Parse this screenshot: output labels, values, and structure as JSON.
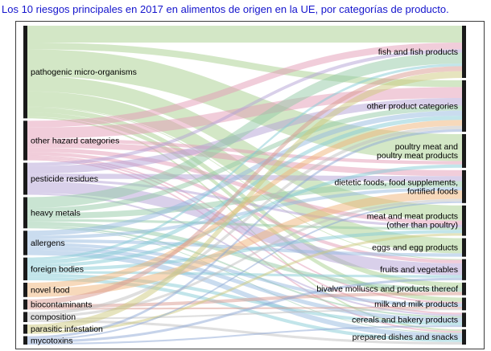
{
  "chart_data": {
    "type": "sankey",
    "title": "Los 10 riesgos principales en 2017 en alimentos de origen en la UE, por categorías de producto.",
    "orientation": "left-to-right",
    "node_color": "#1a1a1a",
    "link_opacity": 0.5,
    "note": "flow values are relative magnitudes estimated from band thickness; the figure shows no numeric labels",
    "sources": [
      {
        "label": "pathogenic micro-organisms",
        "color": "#a8d08d"
      },
      {
        "label": "other hazard categories",
        "color": "#e39bb5"
      },
      {
        "label": "pesticide residues",
        "color": "#b3a2d6"
      },
      {
        "label": "heavy metals",
        "color": "#93c9a5"
      },
      {
        "label": "allergens",
        "color": "#96b9e0"
      },
      {
        "label": "foreign bodies",
        "color": "#85ccd6"
      },
      {
        "label": "novel food",
        "color": "#f0b377"
      },
      {
        "label": "biocontaminants",
        "color": "#d99a8f"
      },
      {
        "label": "composition",
        "color": "#bfbfbf"
      },
      {
        "label": "parasitic infestation",
        "color": "#cdc97e"
      },
      {
        "label": "mycotoxins",
        "color": "#8ea8d6"
      }
    ],
    "targets": [
      {
        "label": "fish and fish products"
      },
      {
        "label": "other product categories"
      },
      {
        "label": "poultry meat and\npoultry meat products"
      },
      {
        "label": "dietetic foods, food supplements,\nfortified foods"
      },
      {
        "label": "meat and meat products\n(other than poultry)"
      },
      {
        "label": "eggs and egg products"
      },
      {
        "label": "fruits and vegetables"
      },
      {
        "label": "bivalve molluscs and products thereof"
      },
      {
        "label": "milk and milk products"
      },
      {
        "label": "cereals and bakery products"
      },
      {
        "label": "prepared dishes and snacks"
      }
    ],
    "links": [
      [
        0,
        0,
        20
      ],
      [
        0,
        1,
        8
      ],
      [
        0,
        2,
        32
      ],
      [
        0,
        4,
        18
      ],
      [
        0,
        5,
        18
      ],
      [
        0,
        6,
        1
      ],
      [
        0,
        7,
        6
      ],
      [
        0,
        8,
        5
      ],
      [
        0,
        10,
        2
      ],
      [
        1,
        0,
        8
      ],
      [
        1,
        1,
        13
      ],
      [
        1,
        2,
        4
      ],
      [
        1,
        3,
        7
      ],
      [
        1,
        4,
        5
      ],
      [
        1,
        6,
        4
      ],
      [
        1,
        8,
        2
      ],
      [
        1,
        9,
        2
      ],
      [
        1,
        10,
        2
      ],
      [
        2,
        0,
        4
      ],
      [
        2,
        1,
        9
      ],
      [
        2,
        3,
        6
      ],
      [
        2,
        4,
        3
      ],
      [
        2,
        6,
        14
      ],
      [
        2,
        9,
        2
      ],
      [
        3,
        0,
        13
      ],
      [
        3,
        1,
        6
      ],
      [
        3,
        3,
        7
      ],
      [
        3,
        4,
        3
      ],
      [
        3,
        7,
        5
      ],
      [
        3,
        9,
        2
      ],
      [
        3,
        10,
        1
      ],
      [
        4,
        1,
        6
      ],
      [
        4,
        3,
        4
      ],
      [
        4,
        5,
        4
      ],
      [
        4,
        8,
        4
      ],
      [
        4,
        9,
        5
      ],
      [
        4,
        10,
        6
      ],
      [
        5,
        0,
        3
      ],
      [
        5,
        1,
        5
      ],
      [
        5,
        2,
        4
      ],
      [
        5,
        4,
        4
      ],
      [
        5,
        6,
        3
      ],
      [
        5,
        9,
        4
      ],
      [
        5,
        10,
        4
      ],
      [
        6,
        1,
        7
      ],
      [
        6,
        3,
        10
      ],
      [
        7,
        0,
        6
      ],
      [
        7,
        7,
        4
      ],
      [
        7,
        8,
        2
      ],
      [
        8,
        1,
        4
      ],
      [
        8,
        3,
        3
      ],
      [
        8,
        8,
        2
      ],
      [
        8,
        10,
        3
      ],
      [
        9,
        0,
        8
      ],
      [
        9,
        4,
        3
      ],
      [
        10,
        1,
        3
      ],
      [
        10,
        3,
        2
      ],
      [
        10,
        6,
        3
      ],
      [
        10,
        9,
        2
      ]
    ]
  }
}
